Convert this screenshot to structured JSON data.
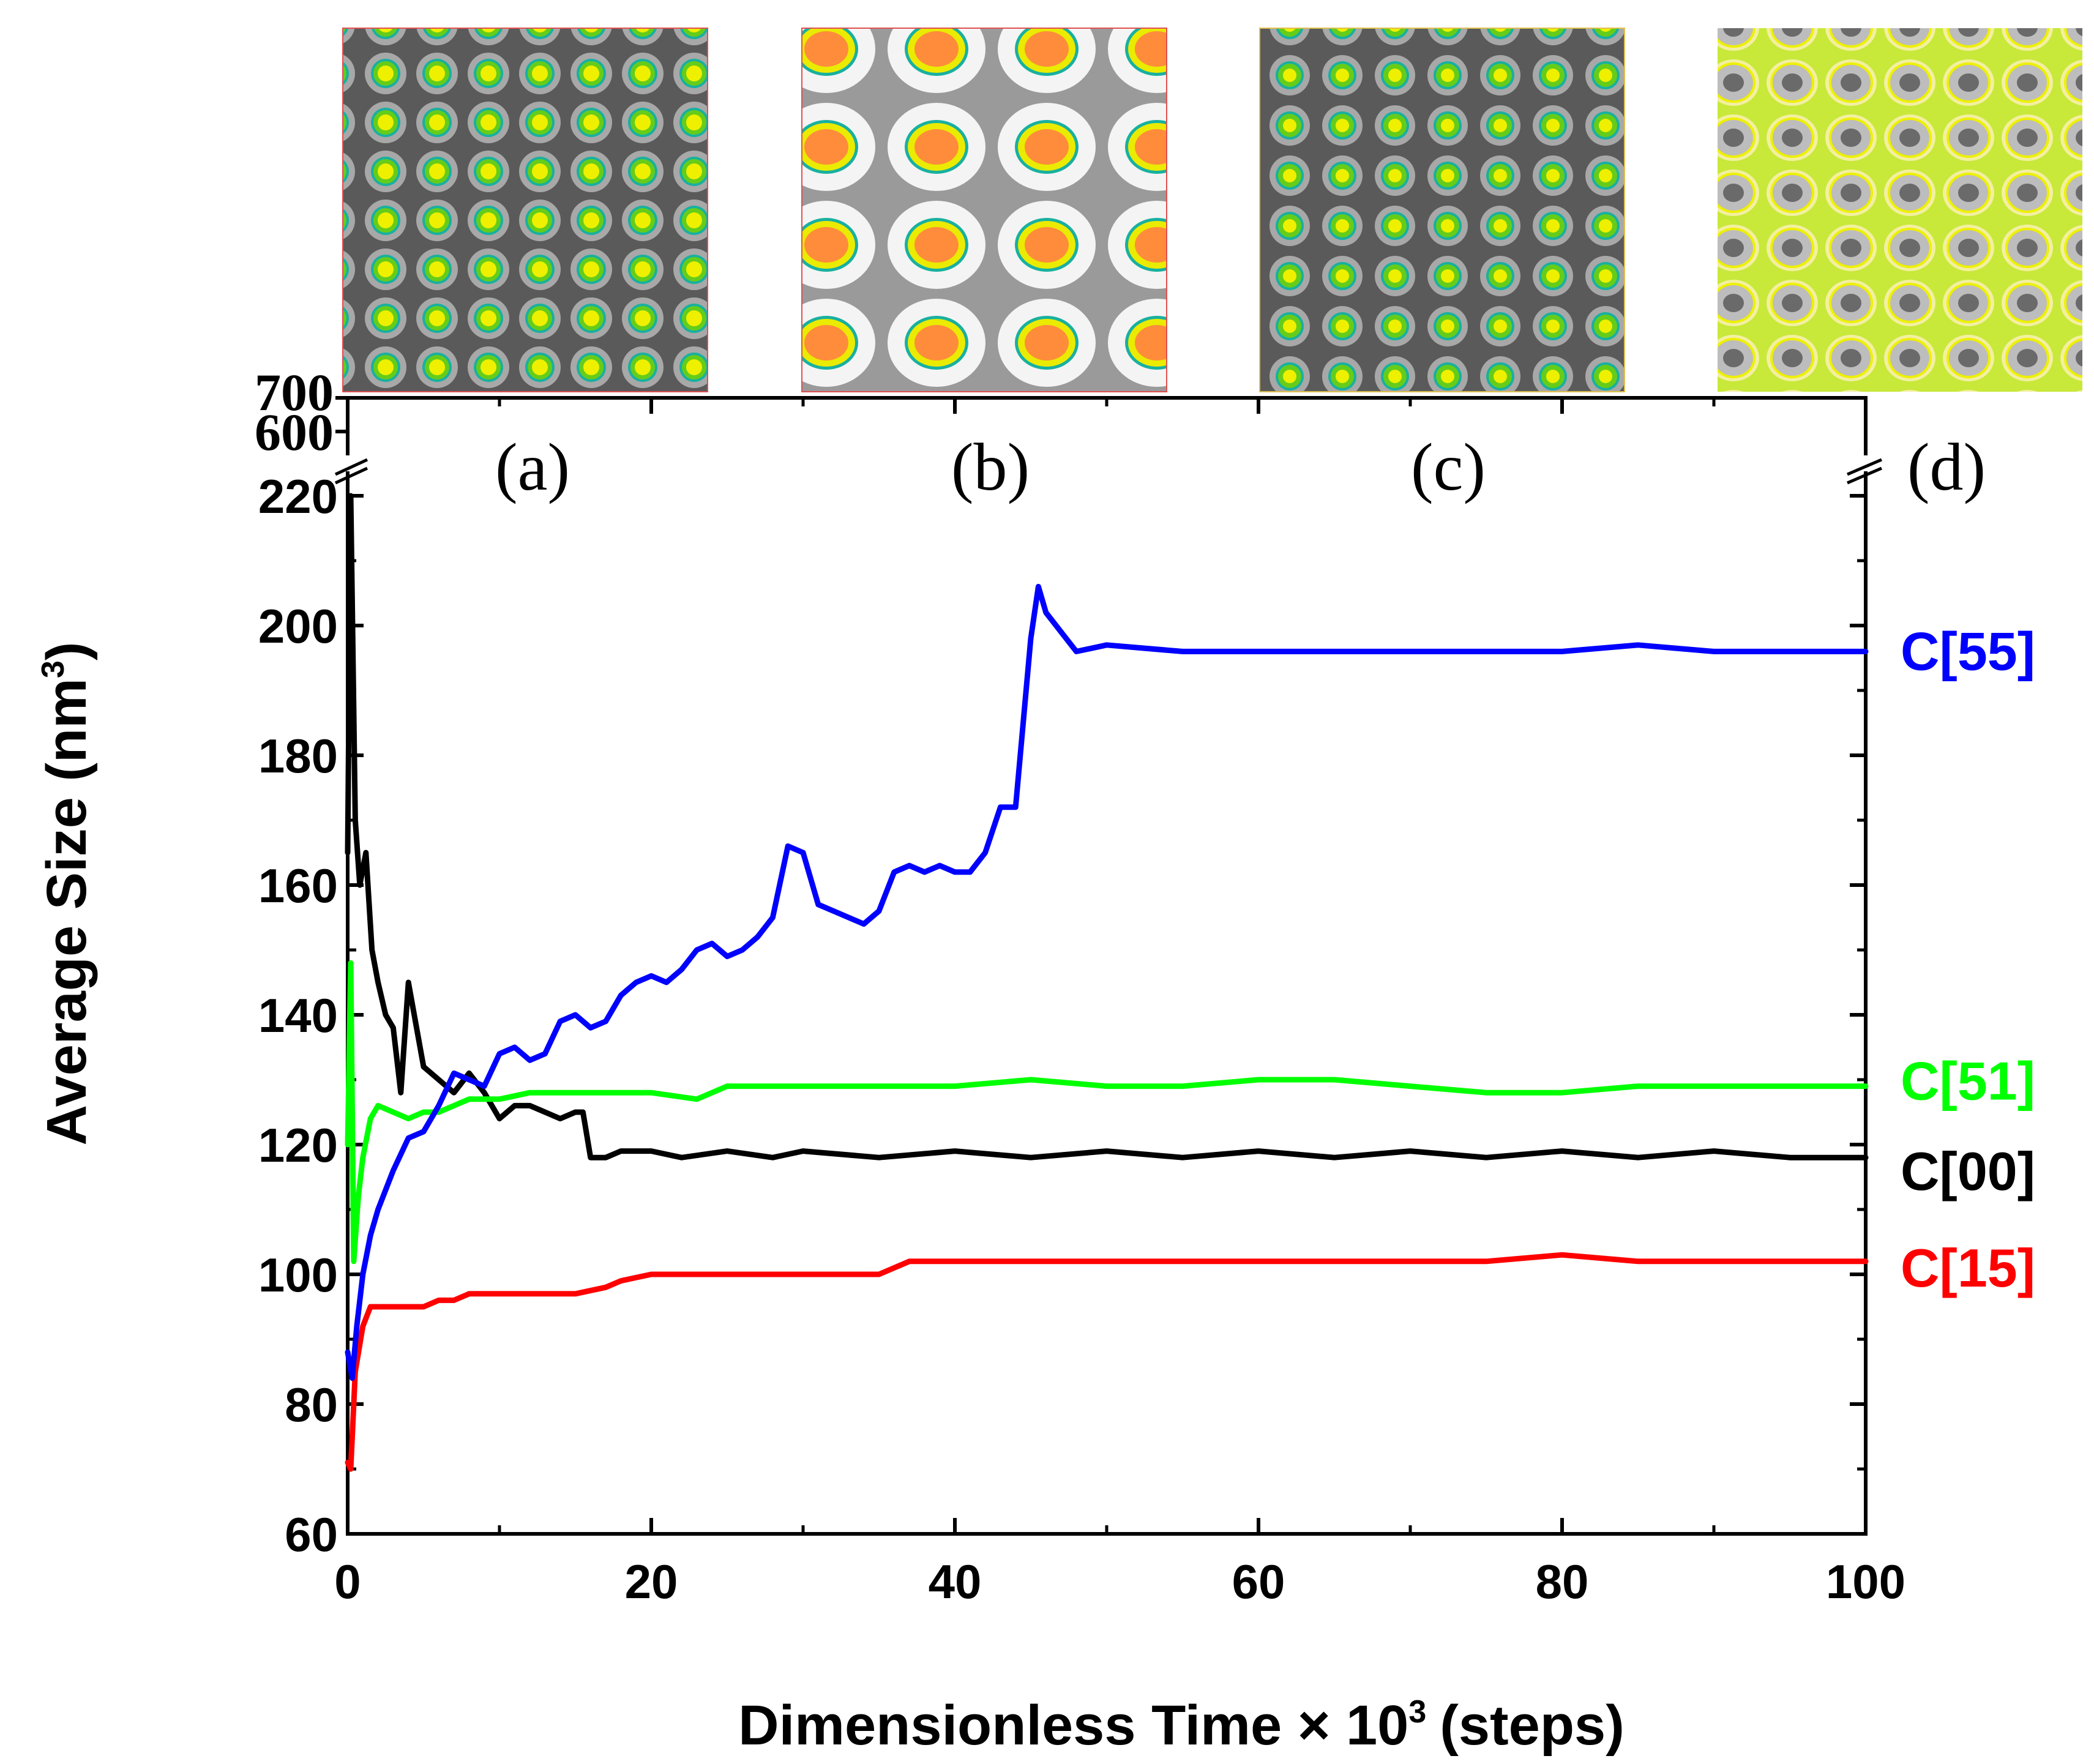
{
  "chart_data": {
    "type": "line",
    "xlabel": "Dimensionless Time × 10",
    "xlabel_superscript": "3",
    "xlabel_suffix": "(steps)",
    "ylabel": "Average Size (nm",
    "ylabel_superscript": "3",
    "ylabel_suffix": ")",
    "xlim": [
      0,
      100
    ],
    "ylim": [
      60,
      220
    ],
    "x_ticks": [
      "0",
      "20",
      "40",
      "60",
      "80",
      "100"
    ],
    "y_ticks": [
      "60",
      "80",
      "100",
      "120",
      "140",
      "160",
      "180",
      "200",
      "220"
    ],
    "y_break_ticks": [
      "600",
      "700"
    ],
    "grid": false,
    "panel_labels": [
      "(a)",
      "(b)",
      "(c)",
      "(d)"
    ],
    "panel_colors": {
      "a": {
        "bg": "#5a5a5a",
        "halo": "#a8a8a8",
        "rim": "#18b0a0",
        "ring": "#66cc1a",
        "core": "#eef000"
      },
      "b": {
        "bg": "#9a9a9a",
        "halo": "#f4f4f4",
        "rim": "#18b0a0",
        "ring": "#eaeb00",
        "core": "#ff8c3a"
      },
      "c": {
        "bg": "#5a5a5a",
        "halo": "#a8a8a8",
        "rim": "#18b0a0",
        "ring": "#66cc1a",
        "core": "#eef000"
      },
      "d": {
        "bg": "#c8e83a",
        "halo": "#f2f0a0",
        "rim": "#eef000",
        "ring": "#bdbdbd",
        "core": "#6a6a6a"
      }
    },
    "series": [
      {
        "name": "C[55]",
        "color": "#0000ff",
        "x": [
          0,
          0.3,
          0.6,
          1,
          1.5,
          2,
          3,
          4,
          5,
          6,
          7,
          8,
          9,
          10,
          11,
          12,
          13,
          14,
          15,
          16,
          17,
          18,
          19,
          20,
          21,
          22,
          23,
          24,
          25,
          26,
          27,
          28,
          29,
          30,
          31,
          32,
          33,
          34,
          35,
          36,
          37,
          38,
          39,
          40,
          41,
          42,
          43,
          44,
          45,
          45.5,
          46,
          47,
          48,
          50,
          55,
          60,
          65,
          70,
          75,
          80,
          85,
          90,
          95,
          100
        ],
        "values": [
          88,
          84,
          92,
          100,
          106,
          110,
          116,
          121,
          122,
          126,
          131,
          130,
          129,
          134,
          135,
          133,
          134,
          139,
          140,
          138,
          139,
          143,
          145,
          146,
          145,
          147,
          150,
          151,
          149,
          150,
          152,
          155,
          166,
          165,
          157,
          156,
          155,
          154,
          156,
          162,
          163,
          162,
          163,
          162,
          162,
          165,
          172,
          172,
          198,
          206,
          202,
          199,
          196,
          197,
          196,
          196,
          196,
          196,
          196,
          196,
          197,
          196,
          196,
          196
        ]
      },
      {
        "name": "C[51]",
        "color": "#00ff00",
        "x": [
          0,
          0.2,
          0.4,
          0.7,
          1,
          1.5,
          2,
          3,
          4,
          5,
          6,
          8,
          10,
          12,
          14,
          16,
          18,
          20,
          23,
          25,
          30,
          35,
          40,
          45,
          50,
          55,
          60,
          65,
          70,
          75,
          80,
          85,
          90,
          95,
          100
        ],
        "values": [
          120,
          148,
          102,
          112,
          118,
          124,
          126,
          125,
          124,
          125,
          125,
          127,
          127,
          128,
          128,
          128,
          128,
          128,
          127,
          129,
          129,
          129,
          129,
          130,
          129,
          129,
          130,
          130,
          129,
          128,
          128,
          129,
          129,
          129,
          129
        ]
      },
      {
        "name": "C[00]",
        "color": "#000000",
        "x": [
          0,
          0.2,
          0.5,
          0.8,
          1.2,
          1.6,
          2,
          2.5,
          3,
          3.5,
          4,
          5,
          6,
          7,
          8,
          9,
          10,
          11,
          12,
          13,
          14,
          15,
          15.5,
          16,
          17,
          18,
          20,
          22,
          25,
          28,
          30,
          35,
          40,
          45,
          50,
          55,
          60,
          65,
          70,
          75,
          80,
          85,
          90,
          95,
          100
        ],
        "values": [
          165,
          225,
          170,
          160,
          165,
          150,
          145,
          140,
          138,
          128,
          145,
          132,
          130,
          128,
          131,
          128,
          124,
          126,
          126,
          125,
          124,
          125,
          125,
          118,
          118,
          119,
          119,
          118,
          119,
          118,
          119,
          118,
          119,
          118,
          119,
          118,
          119,
          118,
          119,
          118,
          119,
          118,
          119,
          118,
          118
        ]
      },
      {
        "name": "C[15]",
        "color": "#ff0000",
        "x": [
          0,
          0.2,
          0.5,
          1,
          1.5,
          2,
          3,
          4,
          5,
          6,
          7,
          8,
          10,
          12,
          15,
          17,
          18,
          20,
          25,
          30,
          35,
          36,
          37,
          40,
          45,
          50,
          55,
          60,
          65,
          70,
          75,
          80,
          85,
          90,
          95,
          100
        ],
        "values": [
          71,
          70,
          85,
          92,
          95,
          95,
          95,
          95,
          95,
          96,
          96,
          97,
          97,
          97,
          97,
          98,
          99,
          100,
          100,
          100,
          100,
          101,
          102,
          102,
          102,
          102,
          102,
          102,
          102,
          102,
          102,
          103,
          102,
          102,
          102,
          102
        ]
      }
    ]
  }
}
